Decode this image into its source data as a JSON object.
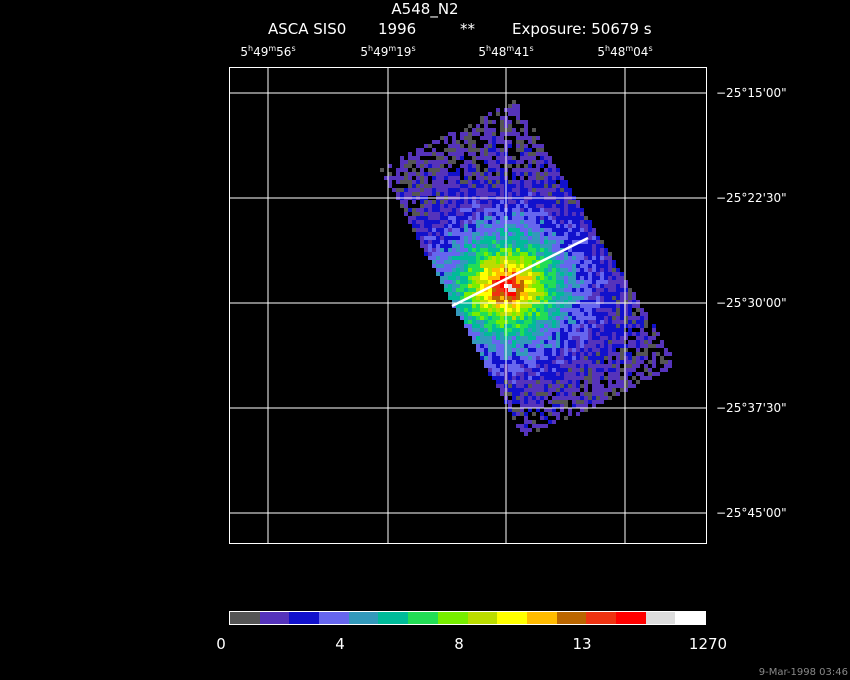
{
  "header": {
    "title": "A548_N2",
    "instrument": "ASCA SIS0",
    "year": "1996",
    "flag": "**",
    "exposure": "Exposure: 50679 s"
  },
  "axes": {
    "ra_labels": [
      {
        "h": "5",
        "m": "49",
        "s": "56"
      },
      {
        "h": "5",
        "m": "49",
        "s": "19"
      },
      {
        "h": "5",
        "m": "48",
        "s": "41"
      },
      {
        "h": "5",
        "m": "48",
        "s": "04"
      }
    ],
    "dec_labels": [
      "−25°15'00\"",
      "−25°22'30\"",
      "−25°30'00\"",
      "−25°37'30\"",
      "−25°45'00\""
    ]
  },
  "colorbar": {
    "colors": [
      "#555555",
      "#5533bb",
      "#1111cc",
      "#6666ee",
      "#3399bb",
      "#00bb99",
      "#22dd55",
      "#77ee00",
      "#bbdd00",
      "#ffff00",
      "#ffbb00",
      "#bb6600",
      "#ee3311",
      "#ff0000",
      "#dddddd",
      "#ffffff"
    ],
    "ticks": [
      "0",
      "4",
      "8",
      "13",
      "1270"
    ]
  },
  "timestamp": "9-Mar-1998 03:46"
}
